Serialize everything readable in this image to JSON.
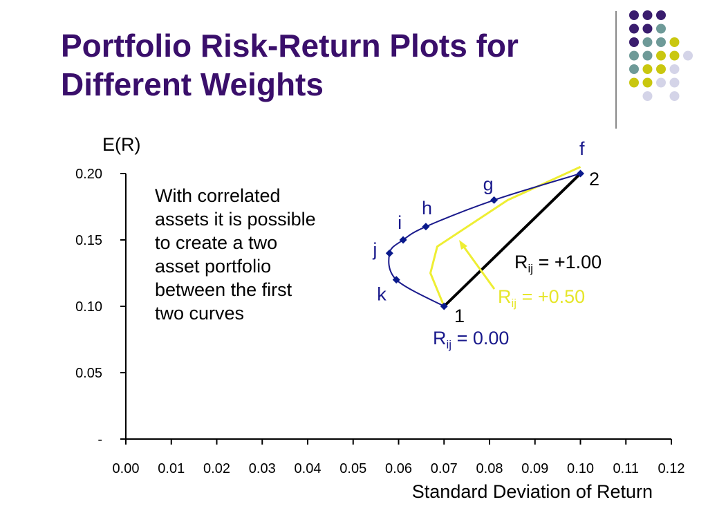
{
  "slide": {
    "title_line1": "Portfolio Risk-Return Plots for",
    "title_line2": "Different Weights",
    "note_lines": [
      "With correlated",
      "assets it is possible",
      "to create a two",
      "asset portfolio",
      "between the first",
      "two curves"
    ],
    "colors": {
      "title": "#3a0f6b",
      "dot_purple": "#3a1d6e",
      "dot_teal": "#6e9a98",
      "dot_yellow": "#c9c70f",
      "dot_lavender": "#d4d4e8"
    }
  },
  "chart_data": {
    "type": "line",
    "xlabel": "Standard Deviation of Return",
    "ylabel": "E(R)",
    "xlim": [
      0.0,
      0.12
    ],
    "ylim": [
      0.0,
      0.2
    ],
    "x_ticks": [
      "0.00",
      "0.01",
      "0.02",
      "0.03",
      "0.04",
      "0.05",
      "0.06",
      "0.07",
      "0.08",
      "0.09",
      "0.10",
      "0.11",
      "0.12"
    ],
    "y_ticks": [
      {
        "value": 0.2,
        "label": "0.20"
      },
      {
        "value": 0.15,
        "label": "0.15"
      },
      {
        "value": 0.1,
        "label": "0.10"
      },
      {
        "value": 0.05,
        "label": "0.05"
      },
      {
        "value": 0.0,
        "label": "-"
      }
    ],
    "series": [
      {
        "name": "Rij = 0.00",
        "color": "#1a1a8c",
        "markers": true,
        "points": [
          {
            "x": 0.07,
            "y": 0.1,
            "label": ""
          },
          {
            "x": 0.0595,
            "y": 0.12,
            "label": "k"
          },
          {
            "x": 0.058,
            "y": 0.14,
            "label": "j"
          },
          {
            "x": 0.061,
            "y": 0.15,
            "label": "i"
          },
          {
            "x": 0.066,
            "y": 0.16,
            "label": "h"
          },
          {
            "x": 0.081,
            "y": 0.18,
            "label": "g"
          },
          {
            "x": 0.1,
            "y": 0.2,
            "label": ""
          }
        ]
      },
      {
        "name": "Rij = +0.50",
        "color": "#eeee33",
        "markers": false,
        "points": [
          {
            "x": 0.07,
            "y": 0.1
          },
          {
            "x": 0.067,
            "y": 0.125
          },
          {
            "x": 0.0685,
            "y": 0.145
          },
          {
            "x": 0.084,
            "y": 0.18
          },
          {
            "x": 0.1,
            "y": 0.205
          }
        ]
      },
      {
        "name": "Rij = +1.00",
        "color": "#000000",
        "markers": false,
        "points": [
          {
            "x": 0.07,
            "y": 0.1
          },
          {
            "x": 0.1,
            "y": 0.2
          }
        ]
      }
    ],
    "point_labels": {
      "f": "f",
      "one": "1",
      "two": "2"
    },
    "annotations": {
      "r100": {
        "main": "R",
        "sub": "ij",
        "rest": " = +1.00",
        "color": "#000000"
      },
      "r050": {
        "main": "R",
        "sub": "ij",
        "rest": " = +0.50",
        "color": "#e6e62a"
      },
      "r000": {
        "main": "R",
        "sub": "ij",
        "rest": " = 0.00",
        "color": "#1a1a8c"
      }
    }
  }
}
